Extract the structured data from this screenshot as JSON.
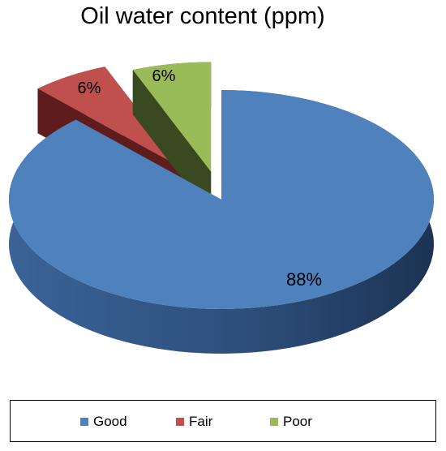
{
  "chart_data": {
    "type": "pie",
    "title": "Oil water content (ppm)",
    "categories": [
      "Good",
      "Fair",
      "Poor"
    ],
    "values": [
      88,
      6,
      6
    ],
    "data_labels": [
      "88%",
      "6%",
      "6%"
    ],
    "colors": [
      "#4F81BD",
      "#C0504D",
      "#9BBB59"
    ],
    "legend_position": "bottom",
    "style": "3d-exploded"
  }
}
